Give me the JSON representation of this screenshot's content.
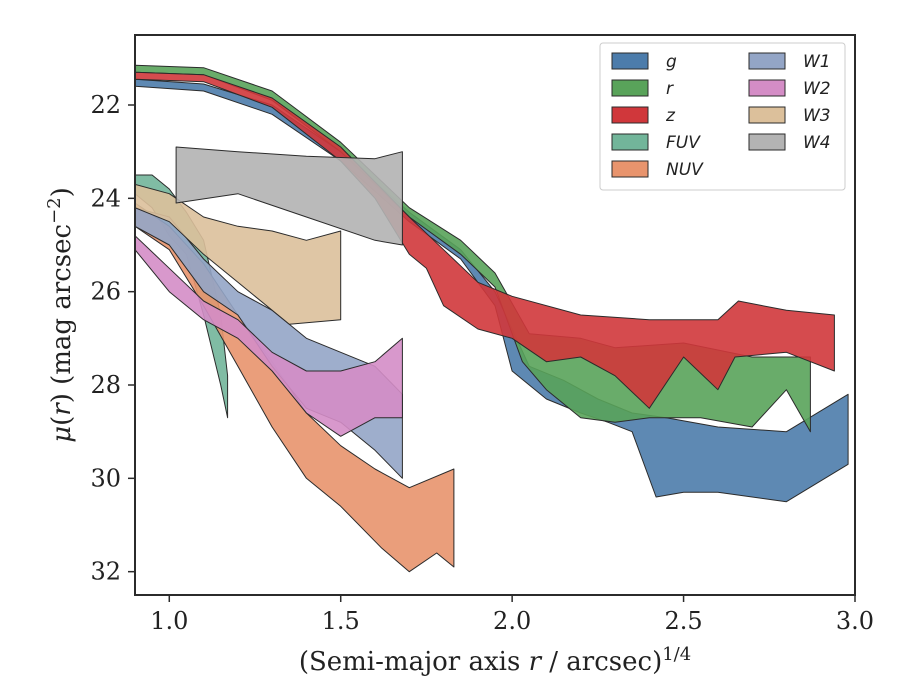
{
  "chart_data": {
    "type": "area",
    "title": "",
    "xlabel": "(Semi-major axis r / arcsec)^1/4",
    "ylabel": "μ(r) (mag arcsec^−2)",
    "xlim": [
      0.9,
      3.0
    ],
    "ylim": [
      32.5,
      20.5
    ],
    "y_inverted": true,
    "x_ticks": [
      1.0,
      1.5,
      2.0,
      2.5,
      3.0
    ],
    "x_tick_labels": [
      "1.0",
      "1.5",
      "2.0",
      "2.5",
      "3.0"
    ],
    "y_ticks": [
      22,
      24,
      26,
      28,
      30,
      32
    ],
    "y_tick_labels": [
      "22",
      "24",
      "26",
      "28",
      "30",
      "32"
    ],
    "legend_position": "top-right",
    "grid": false,
    "series": [
      {
        "name": "g",
        "color": "#4c7cab",
        "upper": [
          [
            0.9,
            21.45
          ],
          [
            1.1,
            21.55
          ],
          [
            1.3,
            22.0
          ],
          [
            1.5,
            23.0
          ],
          [
            1.7,
            24.3
          ],
          [
            1.85,
            25.1
          ],
          [
            1.95,
            26.0
          ],
          [
            2.0,
            26.8
          ],
          [
            2.05,
            27.6
          ],
          [
            2.15,
            27.9
          ],
          [
            2.25,
            28.3
          ],
          [
            2.35,
            28.6
          ],
          [
            2.45,
            28.7
          ],
          [
            2.6,
            28.9
          ],
          [
            2.8,
            29.0
          ],
          [
            2.98,
            28.2
          ]
        ],
        "lower": [
          [
            2.98,
            29.7
          ],
          [
            2.8,
            30.5
          ],
          [
            2.6,
            30.3
          ],
          [
            2.5,
            30.3
          ],
          [
            2.42,
            30.4
          ],
          [
            2.35,
            29.0
          ],
          [
            2.28,
            28.8
          ],
          [
            2.2,
            28.6
          ],
          [
            2.1,
            28.3
          ],
          [
            2.0,
            27.7
          ],
          [
            1.95,
            26.3
          ],
          [
            1.85,
            25.3
          ],
          [
            1.7,
            24.5
          ],
          [
            1.5,
            23.2
          ],
          [
            1.3,
            22.2
          ],
          [
            1.1,
            21.7
          ],
          [
            0.9,
            21.6
          ]
        ]
      },
      {
        "name": "r",
        "color": "#59a35a",
        "upper": [
          [
            0.9,
            21.15
          ],
          [
            1.1,
            21.2
          ],
          [
            1.3,
            21.7
          ],
          [
            1.5,
            22.8
          ],
          [
            1.7,
            24.2
          ],
          [
            1.85,
            24.9
          ],
          [
            1.95,
            25.6
          ],
          [
            2.05,
            26.9
          ],
          [
            2.2,
            27.0
          ],
          [
            2.3,
            27.2
          ],
          [
            2.5,
            27.1
          ],
          [
            2.7,
            27.4
          ],
          [
            2.87,
            27.4
          ]
        ],
        "lower": [
          [
            2.87,
            29.0
          ],
          [
            2.8,
            28.1
          ],
          [
            2.7,
            28.9
          ],
          [
            2.55,
            28.7
          ],
          [
            2.4,
            28.7
          ],
          [
            2.3,
            28.8
          ],
          [
            2.2,
            28.7
          ],
          [
            2.1,
            28.1
          ],
          [
            2.03,
            27.5
          ],
          [
            1.95,
            25.9
          ],
          [
            1.85,
            25.2
          ],
          [
            1.7,
            24.4
          ],
          [
            1.5,
            23.0
          ],
          [
            1.3,
            21.9
          ],
          [
            1.1,
            21.35
          ],
          [
            0.9,
            21.3
          ]
        ]
      },
      {
        "name": "z",
        "color": "#d0373b",
        "upper": [
          [
            0.9,
            21.3
          ],
          [
            1.1,
            21.35
          ],
          [
            1.3,
            21.85
          ],
          [
            1.5,
            22.9
          ],
          [
            1.7,
            24.4
          ],
          [
            1.8,
            25.1
          ],
          [
            1.9,
            25.8
          ],
          [
            2.0,
            26.1
          ],
          [
            2.2,
            26.5
          ],
          [
            2.4,
            26.6
          ],
          [
            2.6,
            26.6
          ],
          [
            2.66,
            26.2
          ],
          [
            2.8,
            26.4
          ],
          [
            2.94,
            26.5
          ]
        ],
        "lower": [
          [
            2.94,
            27.7
          ],
          [
            2.8,
            27.3
          ],
          [
            2.65,
            27.4
          ],
          [
            2.6,
            28.1
          ],
          [
            2.5,
            27.4
          ],
          [
            2.4,
            28.5
          ],
          [
            2.3,
            27.8
          ],
          [
            2.2,
            27.4
          ],
          [
            2.1,
            27.5
          ],
          [
            2.0,
            27.0
          ],
          [
            1.9,
            26.8
          ],
          [
            1.8,
            26.3
          ],
          [
            1.75,
            25.5
          ],
          [
            1.7,
            25.2
          ],
          [
            1.6,
            24.0
          ],
          [
            1.5,
            23.2
          ],
          [
            1.3,
            22.05
          ],
          [
            1.1,
            21.5
          ],
          [
            0.9,
            21.45
          ]
        ]
      },
      {
        "name": "FUV",
        "color": "#72b59a",
        "upper": [
          [
            0.9,
            23.5
          ],
          [
            0.95,
            23.5
          ],
          [
            1.0,
            23.8
          ],
          [
            1.05,
            24.3
          ],
          [
            1.1,
            24.9
          ],
          [
            1.15,
            26.5
          ],
          [
            1.17,
            27.8
          ]
        ],
        "lower": [
          [
            1.17,
            28.7
          ],
          [
            1.15,
            28.0
          ],
          [
            1.1,
            26.5
          ],
          [
            1.05,
            25.2
          ],
          [
            1.0,
            24.8
          ],
          [
            0.95,
            24.2
          ],
          [
            0.9,
            23.9
          ]
        ]
      },
      {
        "name": "NUV",
        "color": "#e8946d",
        "upper": [
          [
            0.9,
            24.1
          ],
          [
            1.0,
            24.6
          ],
          [
            1.1,
            25.4
          ],
          [
            1.2,
            26.5
          ],
          [
            1.3,
            27.5
          ],
          [
            1.4,
            28.6
          ],
          [
            1.5,
            29.3
          ],
          [
            1.6,
            29.8
          ],
          [
            1.7,
            30.2
          ],
          [
            1.83,
            29.8
          ]
        ],
        "lower": [
          [
            1.83,
            31.9
          ],
          [
            1.78,
            31.6
          ],
          [
            1.7,
            32.0
          ],
          [
            1.62,
            31.5
          ],
          [
            1.5,
            30.6
          ],
          [
            1.4,
            30.0
          ],
          [
            1.3,
            28.9
          ],
          [
            1.2,
            27.6
          ],
          [
            1.1,
            26.3
          ],
          [
            1.0,
            25.1
          ],
          [
            0.9,
            24.6
          ]
        ]
      },
      {
        "name": "W1",
        "color": "#93a5c6",
        "upper": [
          [
            0.9,
            24.2
          ],
          [
            1.0,
            24.4
          ],
          [
            1.1,
            25.3
          ],
          [
            1.2,
            26.0
          ],
          [
            1.3,
            26.4
          ],
          [
            1.4,
            27.0
          ],
          [
            1.5,
            27.3
          ],
          [
            1.6,
            27.6
          ],
          [
            1.68,
            28.2
          ]
        ],
        "lower": [
          [
            1.68,
            30.0
          ],
          [
            1.6,
            29.4
          ],
          [
            1.5,
            28.8
          ],
          [
            1.4,
            28.5
          ],
          [
            1.3,
            27.6
          ],
          [
            1.2,
            26.5
          ],
          [
            1.1,
            26.0
          ],
          [
            1.0,
            25.0
          ],
          [
            0.9,
            24.6
          ]
        ]
      },
      {
        "name": "W2",
        "color": "#d48dc6",
        "upper": [
          [
            0.9,
            24.8
          ],
          [
            1.0,
            25.5
          ],
          [
            1.1,
            26.2
          ],
          [
            1.2,
            26.6
          ],
          [
            1.3,
            27.3
          ],
          [
            1.4,
            27.7
          ],
          [
            1.5,
            27.7
          ],
          [
            1.6,
            27.5
          ],
          [
            1.68,
            27.0
          ]
        ],
        "lower": [
          [
            1.68,
            28.7
          ],
          [
            1.6,
            28.7
          ],
          [
            1.5,
            29.1
          ],
          [
            1.4,
            28.6
          ],
          [
            1.3,
            27.7
          ],
          [
            1.2,
            27.0
          ],
          [
            1.1,
            26.6
          ],
          [
            1.0,
            26.0
          ],
          [
            0.9,
            25.1
          ]
        ]
      },
      {
        "name": "W3",
        "color": "#dcc09b",
        "upper": [
          [
            0.9,
            23.7
          ],
          [
            1.0,
            23.9
          ],
          [
            1.1,
            24.4
          ],
          [
            1.2,
            24.6
          ],
          [
            1.3,
            24.7
          ],
          [
            1.4,
            24.9
          ],
          [
            1.5,
            24.7
          ]
        ],
        "lower": [
          [
            1.5,
            26.6
          ],
          [
            1.35,
            26.7
          ],
          [
            1.2,
            25.8
          ],
          [
            1.1,
            25.2
          ],
          [
            1.0,
            24.5
          ],
          [
            0.9,
            24.2
          ]
        ]
      },
      {
        "name": "W4",
        "color": "#b3b3b3",
        "upper": [
          [
            1.02,
            22.9
          ],
          [
            1.2,
            23.0
          ],
          [
            1.4,
            23.1
          ],
          [
            1.6,
            23.15
          ],
          [
            1.68,
            23.0
          ]
        ],
        "lower": [
          [
            1.68,
            25.0
          ],
          [
            1.6,
            24.9
          ],
          [
            1.4,
            24.4
          ],
          [
            1.2,
            23.9
          ],
          [
            1.02,
            24.1
          ]
        ]
      }
    ]
  }
}
